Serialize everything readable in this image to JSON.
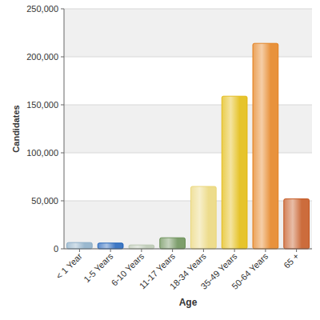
{
  "chart_data": {
    "type": "bar",
    "x_label": "Age",
    "y_label": "Candidates",
    "categories": [
      "< 1 Year",
      "1-5 Years",
      "6-10 Years",
      "11-17 Years",
      "18-34 Years",
      "35-49 Years",
      "50-64 Years",
      "65 +"
    ],
    "values": [
      6500,
      6000,
      4000,
      11500,
      65000,
      159000,
      214000,
      52000
    ],
    "colors": [
      "#9ab8cf",
      "#3f78c4",
      "#c3cfbc",
      "#7d9e6c",
      "#eddc8c",
      "#e6c42c",
      "#e8923c",
      "#cc6c3c"
    ],
    "ylim": [
      0,
      250000
    ],
    "yticks": [
      0,
      {
        "value": 50000,
        "label": "50,000"
      },
      {
        "value": 100000,
        "label": "100,000"
      },
      {
        "value": 150000,
        "label": "150,000"
      },
      {
        "value": 200000,
        "label": "200,000"
      },
      {
        "value": 250000,
        "label": "250,000"
      }
    ],
    "grid": true
  }
}
